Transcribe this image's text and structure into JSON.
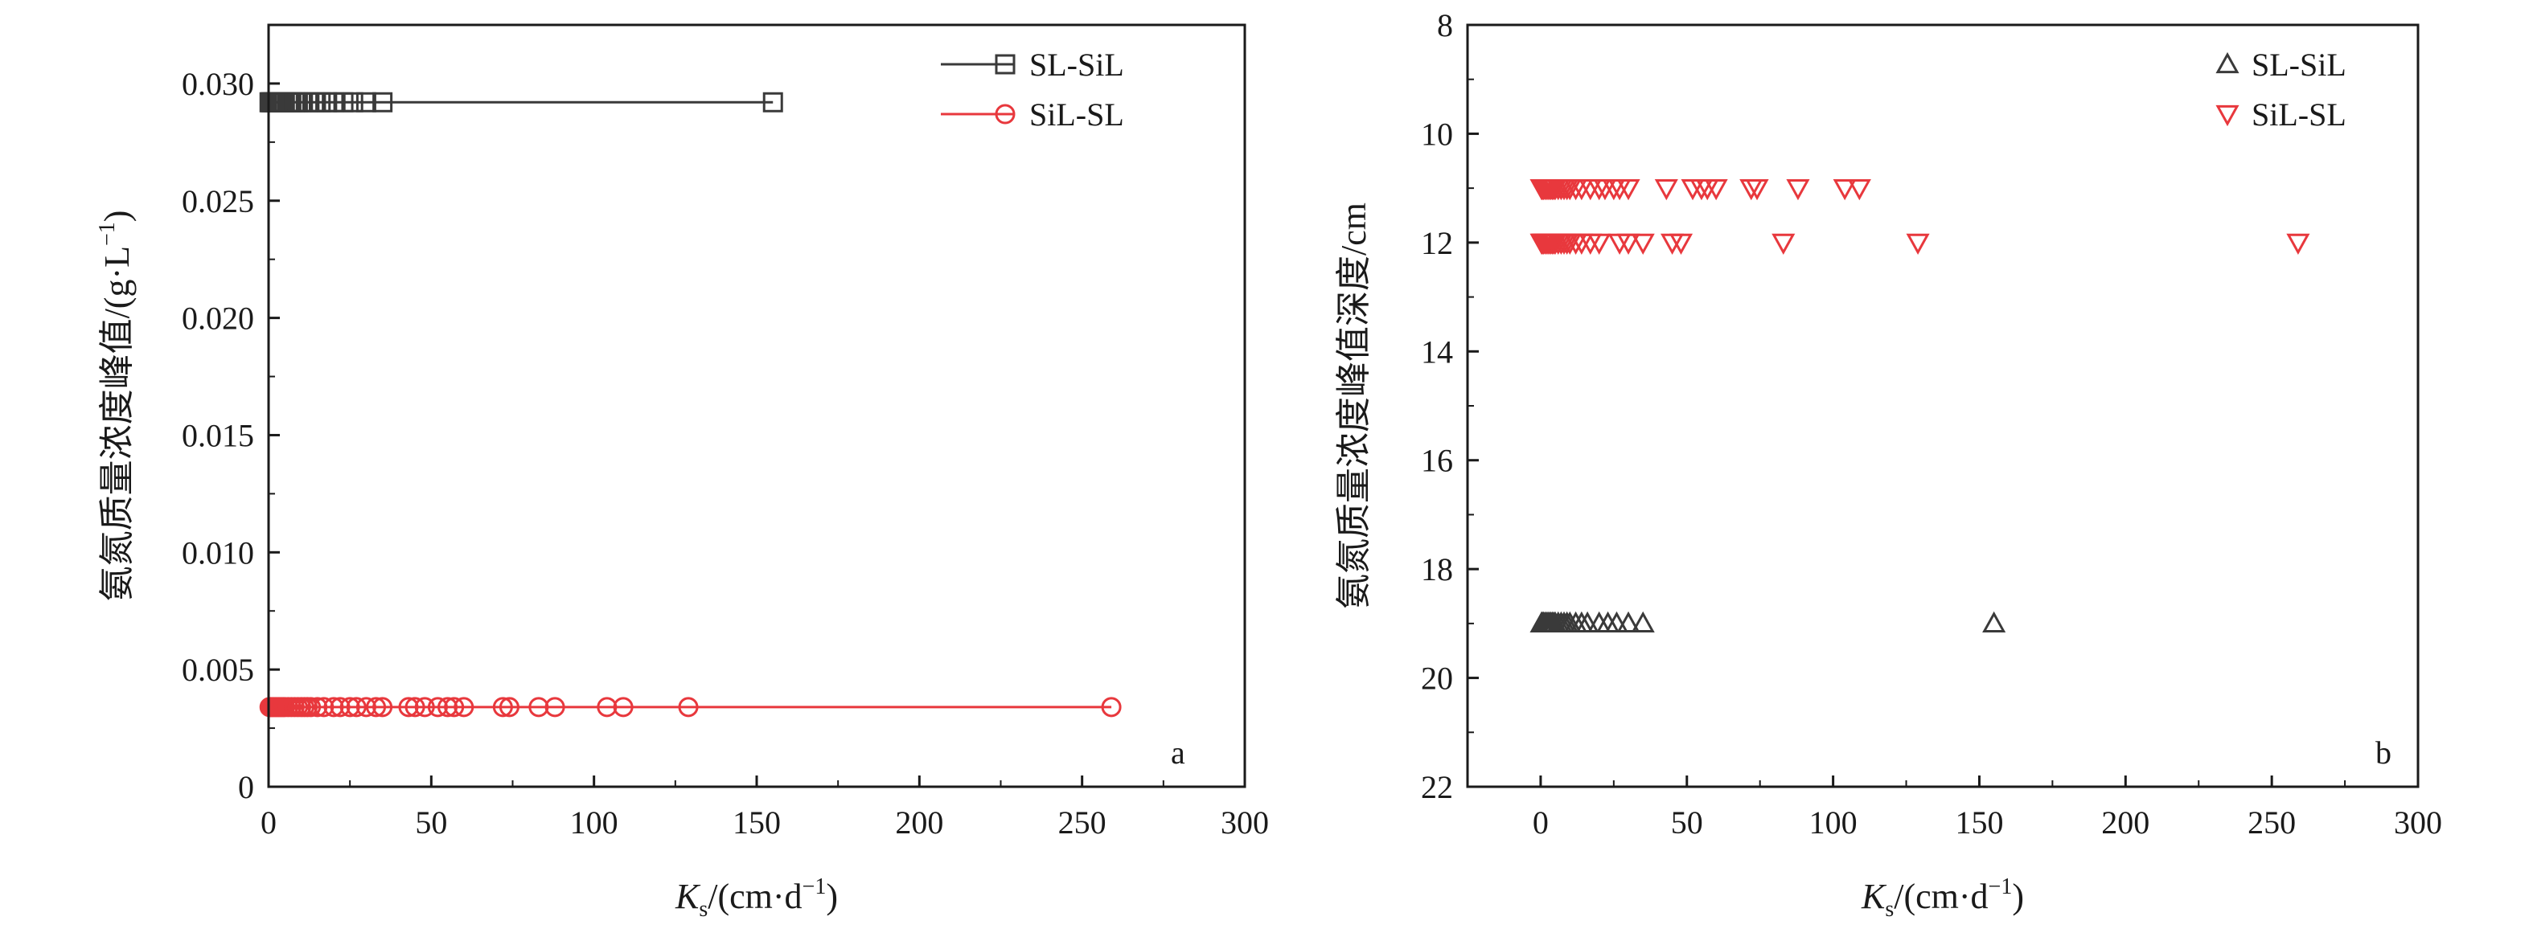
{
  "chart_data": [
    {
      "panel": "a",
      "type": "line",
      "xlabel": "K",
      "xlabel_sub": "s",
      "xlabel_rest": "/(cm·d",
      "xlabel_exp": "−1",
      "xlabel_end": ")",
      "ylabel": "氨氮质量浓度峰值/(g·L",
      "ylabel_exp": "−1",
      "ylabel_end": ")",
      "xlim": [
        0,
        300
      ],
      "ylim": [
        0,
        0.0325
      ],
      "xticks": [
        "0",
        "50",
        "100",
        "150",
        "200",
        "250",
        "300"
      ],
      "yticks": [
        "0",
        "0.005",
        "0.010",
        "0.015",
        "0.020",
        "0.025",
        "0.030"
      ],
      "legend_position": "top-right",
      "series": [
        {
          "name": "SL-SiL",
          "color": "#3a3a3a",
          "marker": "square",
          "x": [
            0.3,
            0.6,
            1,
            1.5,
            2,
            2.5,
            3,
            3.5,
            4,
            4.5,
            5,
            6,
            7,
            8,
            9,
            10,
            12,
            14,
            16,
            18,
            20,
            23,
            26,
            30,
            35,
            155
          ],
          "y": [
            0.0292,
            0.0292,
            0.0292,
            0.0292,
            0.0292,
            0.0292,
            0.0292,
            0.0292,
            0.0292,
            0.0292,
            0.0292,
            0.0292,
            0.0292,
            0.0292,
            0.0292,
            0.0292,
            0.0292,
            0.0292,
            0.0292,
            0.0292,
            0.0292,
            0.0292,
            0.0292,
            0.0292,
            0.0292,
            0.0292
          ]
        },
        {
          "name": "SiL-SL",
          "color": "#e8383d",
          "marker": "circle",
          "x": [
            0.3,
            0.6,
            1,
            1.5,
            2,
            2.5,
            3,
            3.5,
            4,
            4.5,
            5,
            6,
            7,
            8,
            9,
            10,
            11,
            12,
            13,
            15,
            17,
            20,
            22,
            25,
            27,
            30,
            33,
            35,
            43,
            45,
            48,
            52,
            55,
            57,
            60,
            72,
            74,
            83,
            88,
            104,
            109,
            129,
            259
          ],
          "y": [
            0.0034,
            0.0034,
            0.0034,
            0.0034,
            0.0034,
            0.0034,
            0.0034,
            0.0034,
            0.0034,
            0.0034,
            0.0034,
            0.0034,
            0.0034,
            0.0034,
            0.0034,
            0.0034,
            0.0034,
            0.0034,
            0.0034,
            0.0034,
            0.0034,
            0.0034,
            0.0034,
            0.0034,
            0.0034,
            0.0034,
            0.0034,
            0.0034,
            0.0034,
            0.0034,
            0.0034,
            0.0034,
            0.0034,
            0.0034,
            0.0034,
            0.0034,
            0.0034,
            0.0034,
            0.0034,
            0.0034,
            0.0034,
            0.0034,
            0.0034
          ]
        }
      ]
    },
    {
      "panel": "b",
      "type": "scatter",
      "xlabel": "K",
      "xlabel_sub": "s",
      "xlabel_rest": "/(cm·d",
      "xlabel_exp": "−1",
      "xlabel_end": ")",
      "ylabel": "氨氮质量浓度峰值深度/cm",
      "xlim": [
        -25,
        300
      ],
      "ylim": [
        22,
        8
      ],
      "y_inverted": true,
      "xticks": [
        "0",
        "50",
        "100",
        "150",
        "200",
        "250",
        "300"
      ],
      "yticks": [
        "8",
        "10",
        "12",
        "14",
        "16",
        "18",
        "20",
        "22"
      ],
      "legend_position": "top-right",
      "series": [
        {
          "name": "SL-SiL",
          "color": "#3a3a3a",
          "marker": "triangle-up",
          "x": [
            0.3,
            0.6,
            1,
            1.5,
            2,
            2.5,
            3,
            3.5,
            4,
            4.5,
            5,
            6,
            7,
            8,
            9,
            10,
            12,
            14,
            16,
            20,
            23,
            26,
            30,
            35,
            155
          ],
          "y": [
            19,
            19,
            19,
            19,
            19,
            19,
            19,
            19,
            19,
            19,
            19,
            19,
            19,
            19,
            19,
            19,
            19,
            19,
            19,
            19,
            19,
            19,
            19,
            19,
            19
          ]
        },
        {
          "name": "SiL-SL",
          "color": "#e8383d",
          "marker": "triangle-down",
          "x": [
            0.3,
            0.6,
            1,
            1.5,
            2,
            2.5,
            3,
            3.5,
            4,
            4.5,
            5,
            6,
            7,
            8,
            9,
            10,
            12,
            14,
            17,
            20,
            22,
            25,
            27,
            30,
            43,
            52,
            55,
            57,
            60,
            72,
            74,
            88,
            104,
            109,
            0.3,
            0.6,
            1,
            1.5,
            2,
            2.5,
            3,
            3.5,
            4,
            4.5,
            5,
            6,
            7,
            8,
            9,
            10,
            12,
            14,
            17,
            20,
            27,
            30,
            35,
            45,
            48,
            83,
            129,
            259
          ],
          "y": [
            11,
            11,
            11,
            11,
            11,
            11,
            11,
            11,
            11,
            11,
            11,
            11,
            11,
            11,
            11,
            11,
            11,
            11,
            11,
            11,
            11,
            11,
            11,
            11,
            11,
            11,
            11,
            11,
            11,
            11,
            11,
            11,
            11,
            11,
            12,
            12,
            12,
            12,
            12,
            12,
            12,
            12,
            12,
            12,
            12,
            12,
            12,
            12,
            12,
            12,
            12,
            12,
            12,
            12,
            12,
            12,
            12,
            12,
            12,
            12,
            12,
            12
          ]
        }
      ]
    }
  ],
  "panel_a": {
    "letter": "a",
    "xlabel_K": "K",
    "xlabel_s": "s",
    "xlabel_unit": "/(cm·d",
    "xlabel_exp": "−1",
    "xlabel_close": ")",
    "ylabel_main": "氨氮质量浓度峰值/(g·L",
    "ylabel_exp": "−1",
    "ylabel_close": ")",
    "legend": [
      "SL-SiL",
      "SiL-SL"
    ]
  },
  "panel_b": {
    "letter": "b",
    "xlabel_K": "K",
    "xlabel_s": "s",
    "xlabel_unit": "/(cm·d",
    "xlabel_exp": "−1",
    "xlabel_close": ")",
    "ylabel_main": "氨氮质量浓度峰值深度/cm",
    "legend": [
      "SL-SiL",
      "SiL-SL"
    ]
  }
}
